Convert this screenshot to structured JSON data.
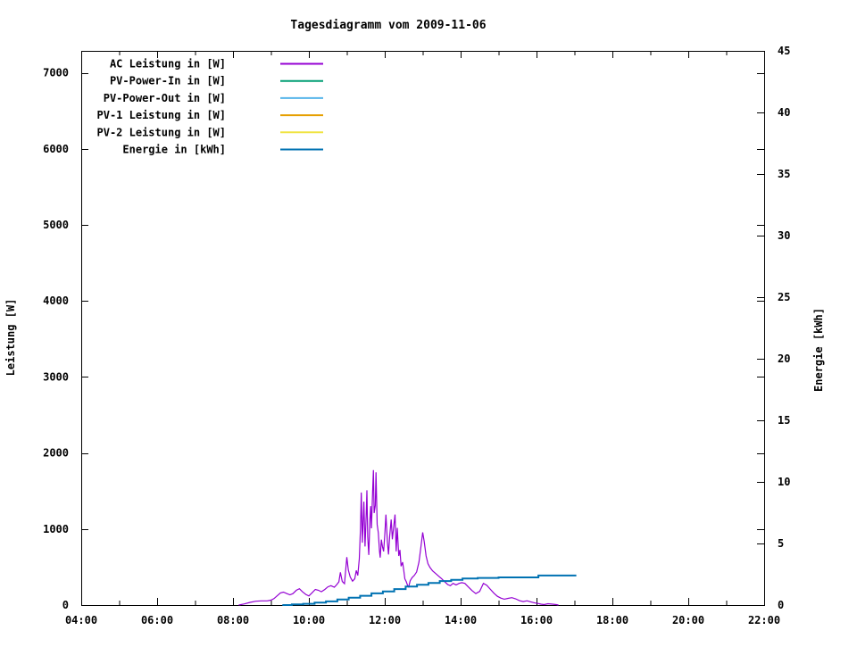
{
  "chart_data": {
    "type": "line",
    "title": "Tagesdiagramm vom 2009-11-06",
    "xlabel": "",
    "ylabel": "Leistung [W]",
    "y2label": "Energie [kWh]",
    "grid": false,
    "legend_position": "top-left-inside",
    "x_axis": {
      "min_hour": 4,
      "max_hour": 22,
      "major_tick_hours": [
        4,
        6,
        8,
        10,
        12,
        14,
        16,
        18,
        20,
        22
      ],
      "major_tick_labels": [
        "04:00",
        "06:00",
        "08:00",
        "10:00",
        "12:00",
        "14:00",
        "16:00",
        "18:00",
        "20:00",
        "22:00"
      ],
      "minor_tick_hours": [
        5,
        7,
        9,
        11,
        13,
        15,
        17,
        19,
        21
      ]
    },
    "y_axis": {
      "min": 0,
      "max_visible_value": 7000,
      "top_of_frame_value": 7289,
      "ticks": [
        0,
        1000,
        2000,
        3000,
        4000,
        5000,
        6000,
        7000
      ]
    },
    "y2_axis": {
      "min": 0,
      "max": 45,
      "ticks": [
        0,
        5,
        10,
        15,
        20,
        25,
        30,
        35,
        40,
        45
      ]
    },
    "series": [
      {
        "name": "AC Leistung in [W]",
        "slug": "ac-leistung",
        "color": "#9400d3",
        "axis": "y1",
        "step": false,
        "stroke_width": 1.2,
        "points": [
          [
            8.15,
            0
          ],
          [
            8.3,
            15
          ],
          [
            8.45,
            35
          ],
          [
            8.6,
            50
          ],
          [
            8.75,
            55
          ],
          [
            8.9,
            55
          ],
          [
            9.0,
            65
          ],
          [
            9.08,
            85
          ],
          [
            9.17,
            125
          ],
          [
            9.25,
            160
          ],
          [
            9.33,
            170
          ],
          [
            9.42,
            150
          ],
          [
            9.5,
            135
          ],
          [
            9.58,
            150
          ],
          [
            9.67,
            195
          ],
          [
            9.75,
            215
          ],
          [
            9.83,
            175
          ],
          [
            9.92,
            140
          ],
          [
            10.0,
            120
          ],
          [
            10.08,
            160
          ],
          [
            10.17,
            205
          ],
          [
            10.25,
            195
          ],
          [
            10.33,
            175
          ],
          [
            10.42,
            205
          ],
          [
            10.5,
            240
          ],
          [
            10.58,
            255
          ],
          [
            10.67,
            235
          ],
          [
            10.73,
            265
          ],
          [
            10.79,
            305
          ],
          [
            10.83,
            430
          ],
          [
            10.88,
            310
          ],
          [
            10.94,
            280
          ],
          [
            11.0,
            630
          ],
          [
            11.04,
            460
          ],
          [
            11.09,
            370
          ],
          [
            11.15,
            315
          ],
          [
            11.21,
            345
          ],
          [
            11.25,
            455
          ],
          [
            11.29,
            390
          ],
          [
            11.33,
            610
          ],
          [
            11.36,
            1010
          ],
          [
            11.38,
            1480
          ],
          [
            11.41,
            820
          ],
          [
            11.43,
            1110
          ],
          [
            11.45,
            1360
          ],
          [
            11.48,
            770
          ],
          [
            11.51,
            1180
          ],
          [
            11.53,
            1510
          ],
          [
            11.55,
            900
          ],
          [
            11.58,
            660
          ],
          [
            11.61,
            1130
          ],
          [
            11.63,
            1300
          ],
          [
            11.65,
            1010
          ],
          [
            11.68,
            1490
          ],
          [
            11.7,
            1775
          ],
          [
            11.72,
            1210
          ],
          [
            11.75,
            1310
          ],
          [
            11.77,
            1745
          ],
          [
            11.8,
            1060
          ],
          [
            11.83,
            950
          ],
          [
            11.86,
            710
          ],
          [
            11.88,
            625
          ],
          [
            11.91,
            860
          ],
          [
            11.94,
            770
          ],
          [
            11.97,
            705
          ],
          [
            12.0,
            915
          ],
          [
            12.03,
            1190
          ],
          [
            12.07,
            825
          ],
          [
            12.1,
            665
          ],
          [
            12.13,
            905
          ],
          [
            12.17,
            1125
          ],
          [
            12.2,
            865
          ],
          [
            12.23,
            1005
          ],
          [
            12.27,
            1190
          ],
          [
            12.3,
            705
          ],
          [
            12.33,
            1015
          ],
          [
            12.37,
            645
          ],
          [
            12.4,
            725
          ],
          [
            12.43,
            510
          ],
          [
            12.47,
            565
          ],
          [
            12.5,
            455
          ],
          [
            12.53,
            345
          ],
          [
            12.57,
            305
          ],
          [
            12.6,
            260
          ],
          [
            12.63,
            240
          ],
          [
            12.67,
            320
          ],
          [
            12.72,
            360
          ],
          [
            12.78,
            390
          ],
          [
            12.84,
            435
          ],
          [
            12.9,
            565
          ],
          [
            12.95,
            755
          ],
          [
            13.0,
            955
          ],
          [
            13.04,
            835
          ],
          [
            13.09,
            645
          ],
          [
            13.14,
            545
          ],
          [
            13.19,
            495
          ],
          [
            13.26,
            450
          ],
          [
            13.34,
            415
          ],
          [
            13.42,
            380
          ],
          [
            13.5,
            345
          ],
          [
            13.58,
            305
          ],
          [
            13.66,
            270
          ],
          [
            13.73,
            255
          ],
          [
            13.8,
            285
          ],
          [
            13.88,
            265
          ],
          [
            13.96,
            285
          ],
          [
            14.03,
            295
          ],
          [
            14.11,
            285
          ],
          [
            14.2,
            240
          ],
          [
            14.3,
            190
          ],
          [
            14.4,
            150
          ],
          [
            14.5,
            180
          ],
          [
            14.6,
            285
          ],
          [
            14.69,
            260
          ],
          [
            14.78,
            210
          ],
          [
            14.88,
            155
          ],
          [
            14.97,
            115
          ],
          [
            15.06,
            92
          ],
          [
            15.15,
            78
          ],
          [
            15.25,
            88
          ],
          [
            15.35,
            97
          ],
          [
            15.45,
            82
          ],
          [
            15.55,
            58
          ],
          [
            15.65,
            46
          ],
          [
            15.75,
            56
          ],
          [
            15.85,
            42
          ],
          [
            15.95,
            28
          ],
          [
            16.05,
            20
          ],
          [
            16.12,
            12
          ],
          [
            16.2,
            6
          ],
          [
            16.3,
            18
          ],
          [
            16.42,
            12
          ],
          [
            16.52,
            6
          ],
          [
            16.58,
            0
          ]
        ]
      },
      {
        "name": "PV-Power-In in [W]",
        "slug": "pv-power-in",
        "color": "#009e73",
        "axis": "y1",
        "step": false,
        "stroke_width": 1.2,
        "points": []
      },
      {
        "name": "PV-Power-Out in [W]",
        "slug": "pv-power-out",
        "color": "#56b4e9",
        "axis": "y1",
        "step": false,
        "stroke_width": 1.2,
        "points": []
      },
      {
        "name": "PV-1 Leistung in [W]",
        "slug": "pv-1-leistung",
        "color": "#e69f00",
        "axis": "y1",
        "step": false,
        "stroke_width": 1.2,
        "points": []
      },
      {
        "name": "PV-2 Leistung in [W]",
        "slug": "pv-2-leistung",
        "color": "#f0e442",
        "axis": "y1",
        "step": false,
        "stroke_width": 1.2,
        "points": []
      },
      {
        "name": "Energie in [kWh]",
        "slug": "energie",
        "color": "#0072b2",
        "axis": "y2",
        "step": true,
        "stroke_width": 2,
        "points": [
          [
            9.3,
            0
          ],
          [
            9.55,
            0.05
          ],
          [
            9.85,
            0.1
          ],
          [
            10.15,
            0.2
          ],
          [
            10.45,
            0.3
          ],
          [
            10.75,
            0.45
          ],
          [
            11.05,
            0.6
          ],
          [
            11.35,
            0.75
          ],
          [
            11.65,
            0.95
          ],
          [
            11.95,
            1.1
          ],
          [
            12.25,
            1.3
          ],
          [
            12.55,
            1.5
          ],
          [
            12.85,
            1.65
          ],
          [
            13.15,
            1.8
          ],
          [
            13.45,
            1.95
          ],
          [
            13.75,
            2.05
          ],
          [
            14.05,
            2.15
          ],
          [
            14.45,
            2.2
          ],
          [
            15.0,
            2.25
          ],
          [
            15.95,
            2.25
          ],
          [
            16.05,
            2.4
          ],
          [
            17.05,
            2.4
          ]
        ]
      }
    ]
  }
}
